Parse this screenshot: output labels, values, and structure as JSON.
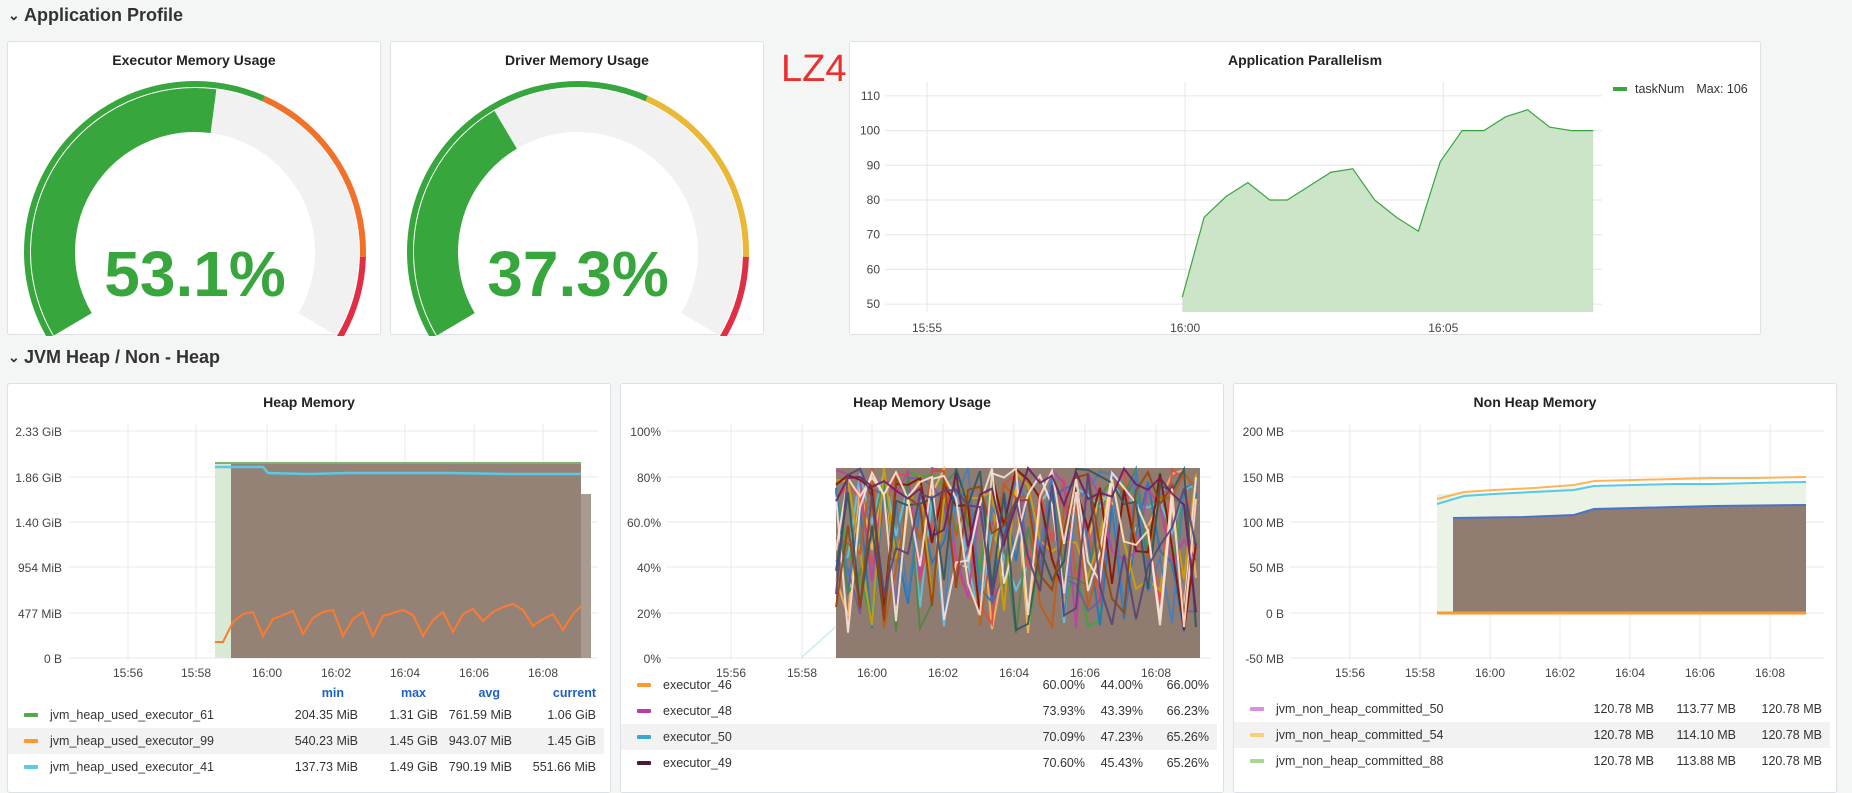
{
  "rows": {
    "app_profile": "Application Profile",
    "jvm": "JVM Heap / Non - Heap"
  },
  "annotation": "LZ4",
  "gauges": [
    {
      "title": "Executor Memory Usage",
      "value": "53.1%",
      "fraction": 0.531,
      "thresholds": [
        0.6,
        0.88
      ],
      "colors": [
        "#37a63d",
        "#f1712b",
        "#e02f44"
      ]
    },
    {
      "title": "Driver Memory Usage",
      "value": "37.3%",
      "fraction": 0.373,
      "thresholds": [
        0.6,
        0.88
      ],
      "colors": [
        "#37a63d",
        "#eab839",
        "#e02f44"
      ]
    }
  ],
  "parallelism": {
    "title": "Application Parallelism",
    "legend_label": "taskNum",
    "legend_max": "Max: 106",
    "color": "#37a63d"
  },
  "heap": {
    "title": "Heap Memory",
    "yticks": [
      "2.33 GiB",
      "1.86 GiB",
      "1.40 GiB",
      "954 MiB",
      "477 MiB",
      "0 B"
    ],
    "xticks": [
      "15:56",
      "15:58",
      "16:00",
      "16:02",
      "16:04",
      "16:06",
      "16:08"
    ],
    "headers": {
      "min": "min",
      "max": "max",
      "avg": "avg",
      "current": "current"
    },
    "rows": [
      {
        "name": "jvm_heap_used_executor_61",
        "min": "204.35 MiB",
        "max": "1.31 GiB",
        "avg": "761.59 MiB",
        "current": "1.06 GiB",
        "color": "#56a64b"
      },
      {
        "name": "jvm_heap_used_executor_99",
        "min": "540.23 MiB",
        "max": "1.45 GiB",
        "avg": "943.07 MiB",
        "current": "1.45 GiB",
        "color": "#ff9830"
      },
      {
        "name": "jvm_heap_used_executor_41",
        "min": "137.73 MiB",
        "max": "1.49 GiB",
        "avg": "790.19 MiB",
        "current": "551.66 MiB",
        "color": "#5bc8e8"
      }
    ]
  },
  "heap_usage": {
    "title": "Heap Memory Usage",
    "yticks": [
      "100%",
      "80%",
      "60.0%",
      "40%",
      "20%",
      "0%"
    ],
    "xticks": [
      "15:56",
      "15:58",
      "16:00",
      "16:02",
      "16:04",
      "16:06",
      "16:08"
    ],
    "partial_row": {
      "name": "executor_46",
      "a": "60.00%",
      "b": "44.00%",
      "c": "66.00%",
      "color": "#ff9830"
    },
    "rows": [
      {
        "name": "executor_48",
        "a": "73.93%",
        "b": "43.39%",
        "c": "66.23%",
        "color": "#b83fa0"
      },
      {
        "name": "executor_50",
        "a": "70.09%",
        "b": "47.23%",
        "c": "65.26%",
        "color": "#3ba6d1"
      },
      {
        "name": "executor_49",
        "a": "70.60%",
        "b": "45.43%",
        "c": "65.26%",
        "color": "#4a1a3a"
      }
    ]
  },
  "non_heap": {
    "title": "Non Heap Memory",
    "yticks": [
      "200 MB",
      "150 MB",
      "100 MB",
      "50 MB",
      "0 B",
      "-50 MB"
    ],
    "xticks": [
      "15:56",
      "15:58",
      "16:00",
      "16:02",
      "16:04",
      "16:06",
      "16:08"
    ],
    "rows": [
      {
        "name": "jvm_non_heap_committed_50",
        "a": "120.78 MB",
        "b": "113.77 MB",
        "c": "120.78 MB",
        "color": "#d98fe0"
      },
      {
        "name": "jvm_non_heap_committed_54",
        "a": "120.78 MB",
        "b": "114.10 MB",
        "c": "120.78 MB",
        "color": "#ffcb7d"
      },
      {
        "name": "jvm_non_heap_committed_88",
        "a": "120.78 MB",
        "b": "113.88 MB",
        "c": "120.78 MB",
        "color": "#a6d795"
      }
    ]
  },
  "chart_data": {
    "type": "area",
    "title": "Application Parallelism",
    "xlabel": "",
    "ylabel": "",
    "x_ticks": [
      "15:55",
      "16:00",
      "16:05"
    ],
    "y_ticks": [
      50,
      60,
      70,
      80,
      90,
      100,
      110
    ],
    "ylim": [
      46,
      114
    ],
    "xlim": [
      15.6,
      23.8
    ],
    "series": [
      {
        "name": "taskNum",
        "x": [
          19.0,
          19.25,
          19.5,
          19.75,
          20.0,
          20.2,
          20.45,
          20.7,
          20.95,
          21.2,
          21.45,
          21.7,
          21.95,
          22.2,
          22.45,
          22.7,
          22.95,
          23.2,
          23.45,
          23.7
        ],
        "values": [
          52,
          75,
          81,
          85,
          80,
          80,
          84,
          88,
          89,
          80,
          75,
          71,
          91,
          100,
          100,
          104,
          106,
          101,
          100,
          100
        ]
      }
    ]
  }
}
